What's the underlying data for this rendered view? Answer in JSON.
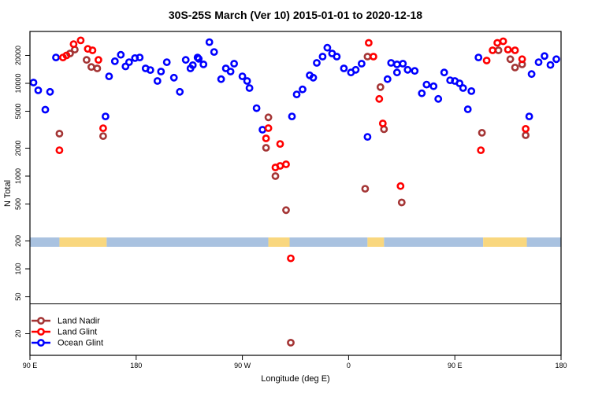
{
  "chart_data": {
    "type": "scatter",
    "title": "30S-25S March (Ver 10)   2015-01-01 to 2020-12-18",
    "xlabel": "Longitude (deg E)",
    "ylabel": "N Total",
    "x_axis": {
      "note": "longitude increases eastward from 90E, wrapping 450 degrees total",
      "range": [
        90,
        540
      ],
      "ticks": [
        {
          "value": 90,
          "label": "90 E"
        },
        {
          "value": 180,
          "label": "180"
        },
        {
          "value": 270,
          "label": "90 W"
        },
        {
          "value": 360,
          "label": "0"
        },
        {
          "value": 450,
          "label": "90 E"
        },
        {
          "value": 540,
          "label": "180"
        }
      ]
    },
    "y_axis": {
      "scale": "log",
      "range": [
        13,
        35000
      ],
      "ticks": [
        20,
        50,
        100,
        200,
        500,
        1000,
        2000,
        5000,
        10000,
        20000
      ]
    },
    "grid": "off",
    "reference_line": {
      "y": 42,
      "color": "#000000"
    },
    "surface_band": {
      "y_range": [
        173,
        218
      ],
      "colors": {
        "ocean": "#A9C2E0",
        "land": "#F9D77E"
      },
      "segments": [
        {
          "from": 90,
          "to": 115,
          "surface": "ocean"
        },
        {
          "from": 115,
          "to": 155,
          "surface": "land"
        },
        {
          "from": 155,
          "to": 292,
          "surface": "ocean"
        },
        {
          "from": 292,
          "to": 310,
          "surface": "land"
        },
        {
          "from": 310,
          "to": 376,
          "surface": "ocean"
        },
        {
          "from": 376,
          "to": 390,
          "surface": "land"
        },
        {
          "from": 390,
          "to": 474,
          "surface": "ocean"
        },
        {
          "from": 474,
          "to": 511,
          "surface": "land"
        },
        {
          "from": 511,
          "to": 540,
          "surface": "ocean"
        }
      ]
    },
    "legend": {
      "position": "bottom-left"
    },
    "marker": "open-circle",
    "series": [
      {
        "name": "Land Nadir",
        "color": "#A43535",
        "points": [
          [
            115,
            2870
          ],
          [
            124,
            21000
          ],
          [
            128,
            23100
          ],
          [
            138,
            17900
          ],
          [
            142,
            15000
          ],
          [
            147,
            14500
          ],
          [
            152,
            2700
          ],
          [
            290,
            2020
          ],
          [
            292,
            4300
          ],
          [
            298,
            1000
          ],
          [
            307,
            430
          ],
          [
            311,
            16
          ],
          [
            374,
            730
          ],
          [
            376,
            19400
          ],
          [
            387,
            9100
          ],
          [
            390,
            3200
          ],
          [
            405,
            520
          ],
          [
            473,
            2930
          ],
          [
            487,
            22700
          ],
          [
            497,
            18200
          ],
          [
            501,
            14800
          ],
          [
            507,
            16000
          ],
          [
            510,
            2760
          ]
        ]
      },
      {
        "name": "Land Glint",
        "color": "#FF0000",
        "points": [
          [
            115,
            1900
          ],
          [
            118,
            19000
          ],
          [
            121,
            20000
          ],
          [
            127,
            26500
          ],
          [
            133,
            29000
          ],
          [
            139,
            23500
          ],
          [
            143,
            22700
          ],
          [
            148,
            17900
          ],
          [
            152,
            3280
          ],
          [
            290,
            2550
          ],
          [
            292,
            3290
          ],
          [
            298,
            1240
          ],
          [
            302,
            2220
          ],
          [
            302,
            1290
          ],
          [
            307,
            1340
          ],
          [
            311,
            130
          ],
          [
            377,
            27300
          ],
          [
            381,
            19400
          ],
          [
            386,
            6800
          ],
          [
            389,
            3700
          ],
          [
            404,
            780
          ],
          [
            472,
            1900
          ],
          [
            477,
            17600
          ],
          [
            482,
            22700
          ],
          [
            486,
            27300
          ],
          [
            491,
            28400
          ],
          [
            495,
            23100
          ],
          [
            501,
            22700
          ],
          [
            507,
            18200
          ],
          [
            510,
            3230
          ]
        ]
      },
      {
        "name": "Ocean Glint",
        "color": "#0000FF",
        "points": [
          [
            93,
            10200
          ],
          [
            97,
            8400
          ],
          [
            103,
            5200
          ],
          [
            107,
            8100
          ],
          [
            112,
            19000
          ],
          [
            154,
            4400
          ],
          [
            157,
            11900
          ],
          [
            162,
            17300
          ],
          [
            167,
            20300
          ],
          [
            171,
            15200
          ],
          [
            174,
            16900
          ],
          [
            179,
            18700
          ],
          [
            183,
            19000
          ],
          [
            188,
            14500
          ],
          [
            192,
            13900
          ],
          [
            198,
            10600
          ],
          [
            201,
            13400
          ],
          [
            206,
            16900
          ],
          [
            212,
            11500
          ],
          [
            217,
            8100
          ],
          [
            222,
            17900
          ],
          [
            226,
            14500
          ],
          [
            228,
            15700
          ],
          [
            232,
            19000
          ],
          [
            233,
            18400
          ],
          [
            237,
            16000
          ],
          [
            242,
            27800
          ],
          [
            246,
            21800
          ],
          [
            252,
            11100
          ],
          [
            256,
            14500
          ],
          [
            260,
            13400
          ],
          [
            263,
            16300
          ],
          [
            270,
            11900
          ],
          [
            274,
            10600
          ],
          [
            276,
            8900
          ],
          [
            282,
            5400
          ],
          [
            287,
            3160
          ],
          [
            312,
            4400
          ],
          [
            316,
            7600
          ],
          [
            321,
            8600
          ],
          [
            327,
            12200
          ],
          [
            330,
            11500
          ],
          [
            333,
            16600
          ],
          [
            338,
            19400
          ],
          [
            342,
            24200
          ],
          [
            346,
            21000
          ],
          [
            350,
            19400
          ],
          [
            356,
            14500
          ],
          [
            362,
            13100
          ],
          [
            366,
            14000
          ],
          [
            371,
            16300
          ],
          [
            376,
            2650
          ],
          [
            393,
            11100
          ],
          [
            396,
            16600
          ],
          [
            401,
            16000
          ],
          [
            401,
            13100
          ],
          [
            406,
            16300
          ],
          [
            410,
            14000
          ],
          [
            416,
            13600
          ],
          [
            422,
            7800
          ],
          [
            426,
            9700
          ],
          [
            432,
            9300
          ],
          [
            436,
            6800
          ],
          [
            441,
            13100
          ],
          [
            446,
            10800
          ],
          [
            450,
            10600
          ],
          [
            454,
            10000
          ],
          [
            457,
            8900
          ],
          [
            461,
            5250
          ],
          [
            464,
            8250
          ],
          [
            470,
            19000
          ],
          [
            513,
            4400
          ],
          [
            515,
            12600
          ],
          [
            521,
            16900
          ],
          [
            526,
            19700
          ],
          [
            531,
            15800
          ],
          [
            536,
            18200
          ]
        ]
      }
    ]
  }
}
